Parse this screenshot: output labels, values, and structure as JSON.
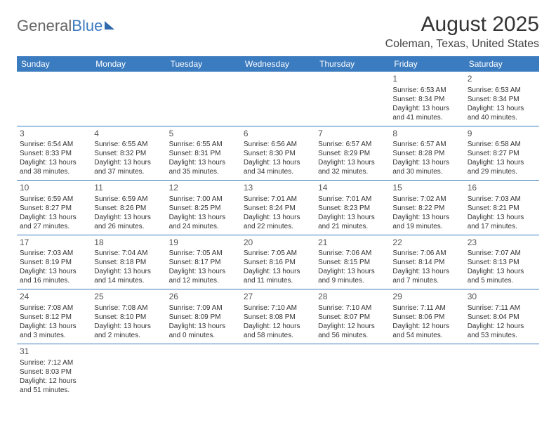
{
  "logo": {
    "part1": "General",
    "part2": "Blue"
  },
  "title": "August 2025",
  "location": "Coleman, Texas, United States",
  "colors": {
    "header_bg": "#3b7bbf",
    "header_text": "#ffffff",
    "divider": "#3b7bbf",
    "body_text": "#333333",
    "logo_gray": "#666666",
    "logo_blue": "#3b7bbf",
    "background": "#ffffff"
  },
  "weekdays": [
    "Sunday",
    "Monday",
    "Tuesday",
    "Wednesday",
    "Thursday",
    "Friday",
    "Saturday"
  ],
  "first_day_index": 5,
  "days_in_month": 31,
  "days": {
    "1": {
      "sunrise": "6:53 AM",
      "sunset": "8:34 PM",
      "daylight": "13 hours and 41 minutes."
    },
    "2": {
      "sunrise": "6:53 AM",
      "sunset": "8:34 PM",
      "daylight": "13 hours and 40 minutes."
    },
    "3": {
      "sunrise": "6:54 AM",
      "sunset": "8:33 PM",
      "daylight": "13 hours and 38 minutes."
    },
    "4": {
      "sunrise": "6:55 AM",
      "sunset": "8:32 PM",
      "daylight": "13 hours and 37 minutes."
    },
    "5": {
      "sunrise": "6:55 AM",
      "sunset": "8:31 PM",
      "daylight": "13 hours and 35 minutes."
    },
    "6": {
      "sunrise": "6:56 AM",
      "sunset": "8:30 PM",
      "daylight": "13 hours and 34 minutes."
    },
    "7": {
      "sunrise": "6:57 AM",
      "sunset": "8:29 PM",
      "daylight": "13 hours and 32 minutes."
    },
    "8": {
      "sunrise": "6:57 AM",
      "sunset": "8:28 PM",
      "daylight": "13 hours and 30 minutes."
    },
    "9": {
      "sunrise": "6:58 AM",
      "sunset": "8:27 PM",
      "daylight": "13 hours and 29 minutes."
    },
    "10": {
      "sunrise": "6:59 AM",
      "sunset": "8:27 PM",
      "daylight": "13 hours and 27 minutes."
    },
    "11": {
      "sunrise": "6:59 AM",
      "sunset": "8:26 PM",
      "daylight": "13 hours and 26 minutes."
    },
    "12": {
      "sunrise": "7:00 AM",
      "sunset": "8:25 PM",
      "daylight": "13 hours and 24 minutes."
    },
    "13": {
      "sunrise": "7:01 AM",
      "sunset": "8:24 PM",
      "daylight": "13 hours and 22 minutes."
    },
    "14": {
      "sunrise": "7:01 AM",
      "sunset": "8:23 PM",
      "daylight": "13 hours and 21 minutes."
    },
    "15": {
      "sunrise": "7:02 AM",
      "sunset": "8:22 PM",
      "daylight": "13 hours and 19 minutes."
    },
    "16": {
      "sunrise": "7:03 AM",
      "sunset": "8:21 PM",
      "daylight": "13 hours and 17 minutes."
    },
    "17": {
      "sunrise": "7:03 AM",
      "sunset": "8:19 PM",
      "daylight": "13 hours and 16 minutes."
    },
    "18": {
      "sunrise": "7:04 AM",
      "sunset": "8:18 PM",
      "daylight": "13 hours and 14 minutes."
    },
    "19": {
      "sunrise": "7:05 AM",
      "sunset": "8:17 PM",
      "daylight": "13 hours and 12 minutes."
    },
    "20": {
      "sunrise": "7:05 AM",
      "sunset": "8:16 PM",
      "daylight": "13 hours and 11 minutes."
    },
    "21": {
      "sunrise": "7:06 AM",
      "sunset": "8:15 PM",
      "daylight": "13 hours and 9 minutes."
    },
    "22": {
      "sunrise": "7:06 AM",
      "sunset": "8:14 PM",
      "daylight": "13 hours and 7 minutes."
    },
    "23": {
      "sunrise": "7:07 AM",
      "sunset": "8:13 PM",
      "daylight": "13 hours and 5 minutes."
    },
    "24": {
      "sunrise": "7:08 AM",
      "sunset": "8:12 PM",
      "daylight": "13 hours and 3 minutes."
    },
    "25": {
      "sunrise": "7:08 AM",
      "sunset": "8:10 PM",
      "daylight": "13 hours and 2 minutes."
    },
    "26": {
      "sunrise": "7:09 AM",
      "sunset": "8:09 PM",
      "daylight": "13 hours and 0 minutes."
    },
    "27": {
      "sunrise": "7:10 AM",
      "sunset": "8:08 PM",
      "daylight": "12 hours and 58 minutes."
    },
    "28": {
      "sunrise": "7:10 AM",
      "sunset": "8:07 PM",
      "daylight": "12 hours and 56 minutes."
    },
    "29": {
      "sunrise": "7:11 AM",
      "sunset": "8:06 PM",
      "daylight": "12 hours and 54 minutes."
    },
    "30": {
      "sunrise": "7:11 AM",
      "sunset": "8:04 PM",
      "daylight": "12 hours and 53 minutes."
    },
    "31": {
      "sunrise": "7:12 AM",
      "sunset": "8:03 PM",
      "daylight": "12 hours and 51 minutes."
    }
  },
  "labels": {
    "sunrise": "Sunrise: ",
    "sunset": "Sunset: ",
    "daylight": "Daylight: "
  }
}
